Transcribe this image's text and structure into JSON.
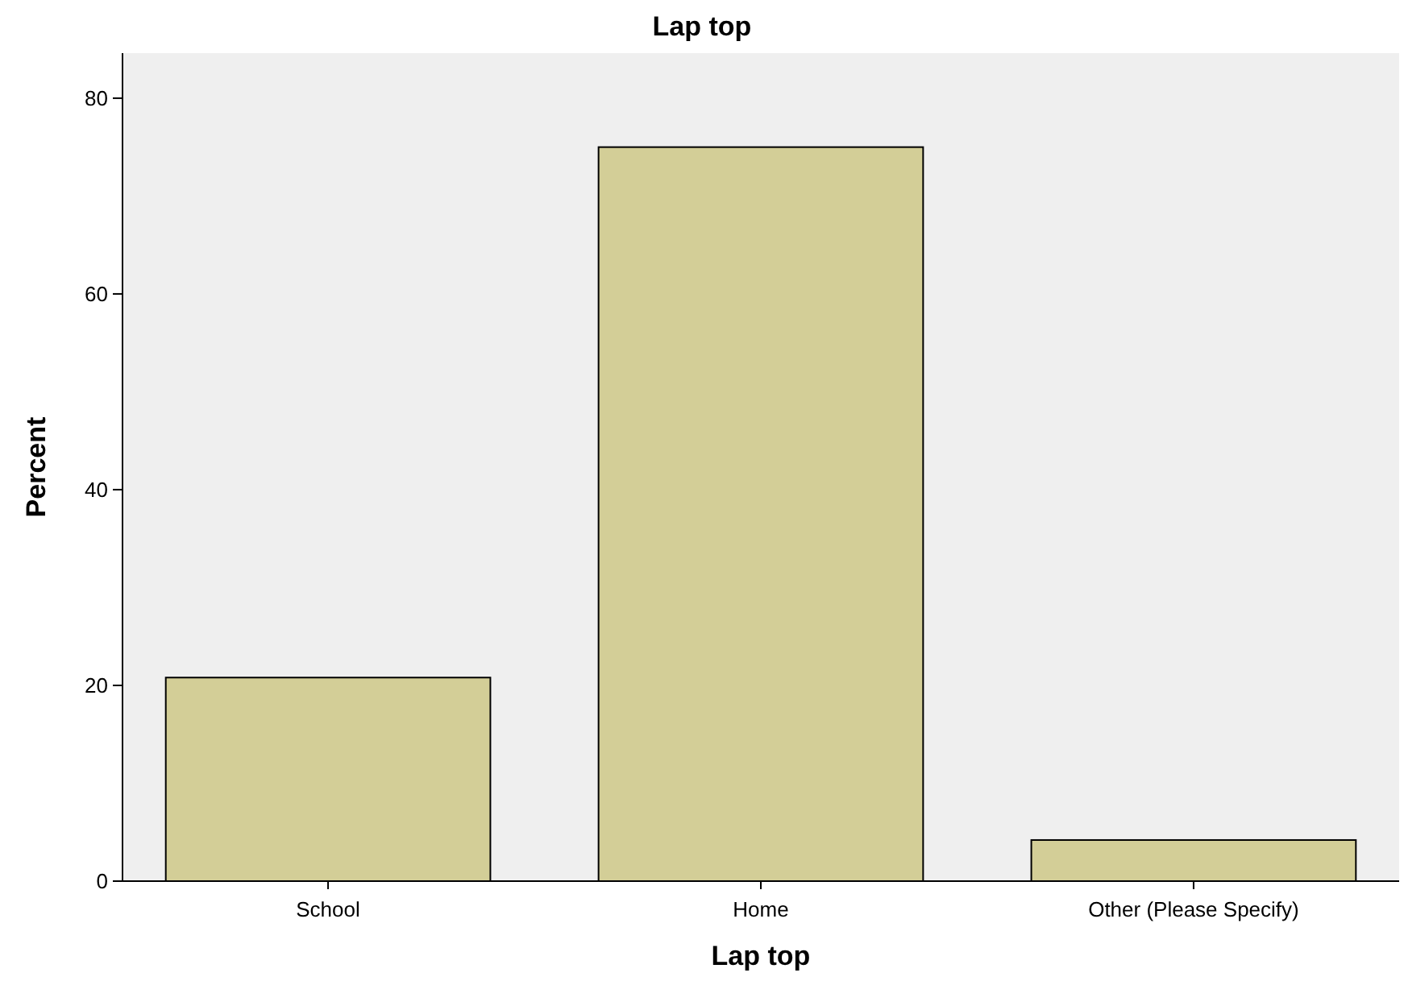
{
  "chart_data": {
    "type": "bar",
    "title": "Lap top",
    "xlabel": "Lap top",
    "ylabel": "Percent",
    "categories": [
      "School",
      "Home",
      "Other (Please Specify)"
    ],
    "values": [
      20.8,
      75,
      4.2
    ],
    "color": "#d3ce97",
    "ylim": [
      0,
      84.6
    ],
    "yticks": [
      0,
      20,
      40,
      60,
      80
    ],
    "grid": false
  }
}
